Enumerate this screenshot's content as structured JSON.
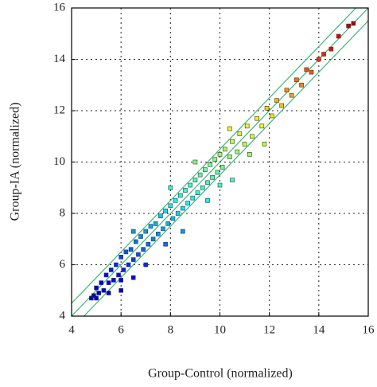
{
  "chart_data": {
    "type": "scatter",
    "xlabel": "Group-Control (normalized)",
    "ylabel": "Group-IA (normalized)",
    "xlim": [
      4,
      16
    ],
    "ylim": [
      4,
      16
    ],
    "xticks": [
      4,
      6,
      8,
      10,
      12,
      14,
      16
    ],
    "yticks": [
      4,
      6,
      8,
      10,
      12,
      14,
      16
    ],
    "grid": true,
    "colormap": "jet",
    "reference_lines": {
      "color": "#3cb878",
      "slope": 1,
      "intercepts": [
        -0.5,
        0,
        0.5
      ]
    },
    "x": [
      4.8,
      4.9,
      5.0,
      5.1,
      5.2,
      5.3,
      5.4,
      5.5,
      5.6,
      5.7,
      5.8,
      5.9,
      6.0,
      6.1,
      6.2,
      6.3,
      6.4,
      6.5,
      6.6,
      6.7,
      6.8,
      6.9,
      7.0,
      7.1,
      7.2,
      7.3,
      7.4,
      7.5,
      7.6,
      7.7,
      7.8,
      7.9,
      8.0,
      8.1,
      8.2,
      8.3,
      8.4,
      8.5,
      8.6,
      8.7,
      8.8,
      8.9,
      9.0,
      9.1,
      9.2,
      9.3,
      9.4,
      9.5,
      9.6,
      9.7,
      9.8,
      9.9,
      10.0,
      10.1,
      10.2,
      10.4,
      10.5,
      10.7,
      10.8,
      11.0,
      11.1,
      11.3,
      11.5,
      11.7,
      11.9,
      12.1,
      12.3,
      12.5,
      12.7,
      12.9,
      13.1,
      13.3,
      13.5,
      13.7,
      14.0,
      14.2,
      14.5,
      14.8,
      15.2,
      15.4,
      7.8,
      8.5,
      9.5,
      10.0,
      10.5,
      11.2,
      11.8,
      6.5,
      8.0,
      9.0,
      10.4,
      5.0,
      5.5,
      6.0,
      6.0,
      6.5,
      7.0
    ],
    "values": [
      4.7,
      4.8,
      5.1,
      4.9,
      5.3,
      5.0,
      5.6,
      5.3,
      5.8,
      5.4,
      6.0,
      5.6,
      6.3,
      5.8,
      6.5,
      6.0,
      6.6,
      6.2,
      6.9,
      6.4,
      7.1,
      6.6,
      7.3,
      6.8,
      7.5,
      7.0,
      7.6,
      7.2,
      7.9,
      7.4,
      8.1,
      7.6,
      8.3,
      7.8,
      8.5,
      8.0,
      8.7,
      8.2,
      8.9,
      8.4,
      9.1,
      8.6,
      9.3,
      8.8,
      9.5,
      9.0,
      9.7,
      9.2,
      9.9,
      9.4,
      10.1,
      9.6,
      10.3,
      9.8,
      10.5,
      10.2,
      10.8,
      10.4,
      11.1,
      10.7,
      11.4,
      11.0,
      11.7,
      11.4,
      12.1,
      11.8,
      12.4,
      12.2,
      12.8,
      12.6,
      13.2,
      13.0,
      13.6,
      13.5,
      14.0,
      14.2,
      14.4,
      14.9,
      15.3,
      15.4,
      6.8,
      7.3,
      8.5,
      9.1,
      9.3,
      10.3,
      10.7,
      7.3,
      9.0,
      10.0,
      11.3,
      4.7,
      4.9,
      5.4,
      5.0,
      5.5,
      6.0
    ]
  }
}
